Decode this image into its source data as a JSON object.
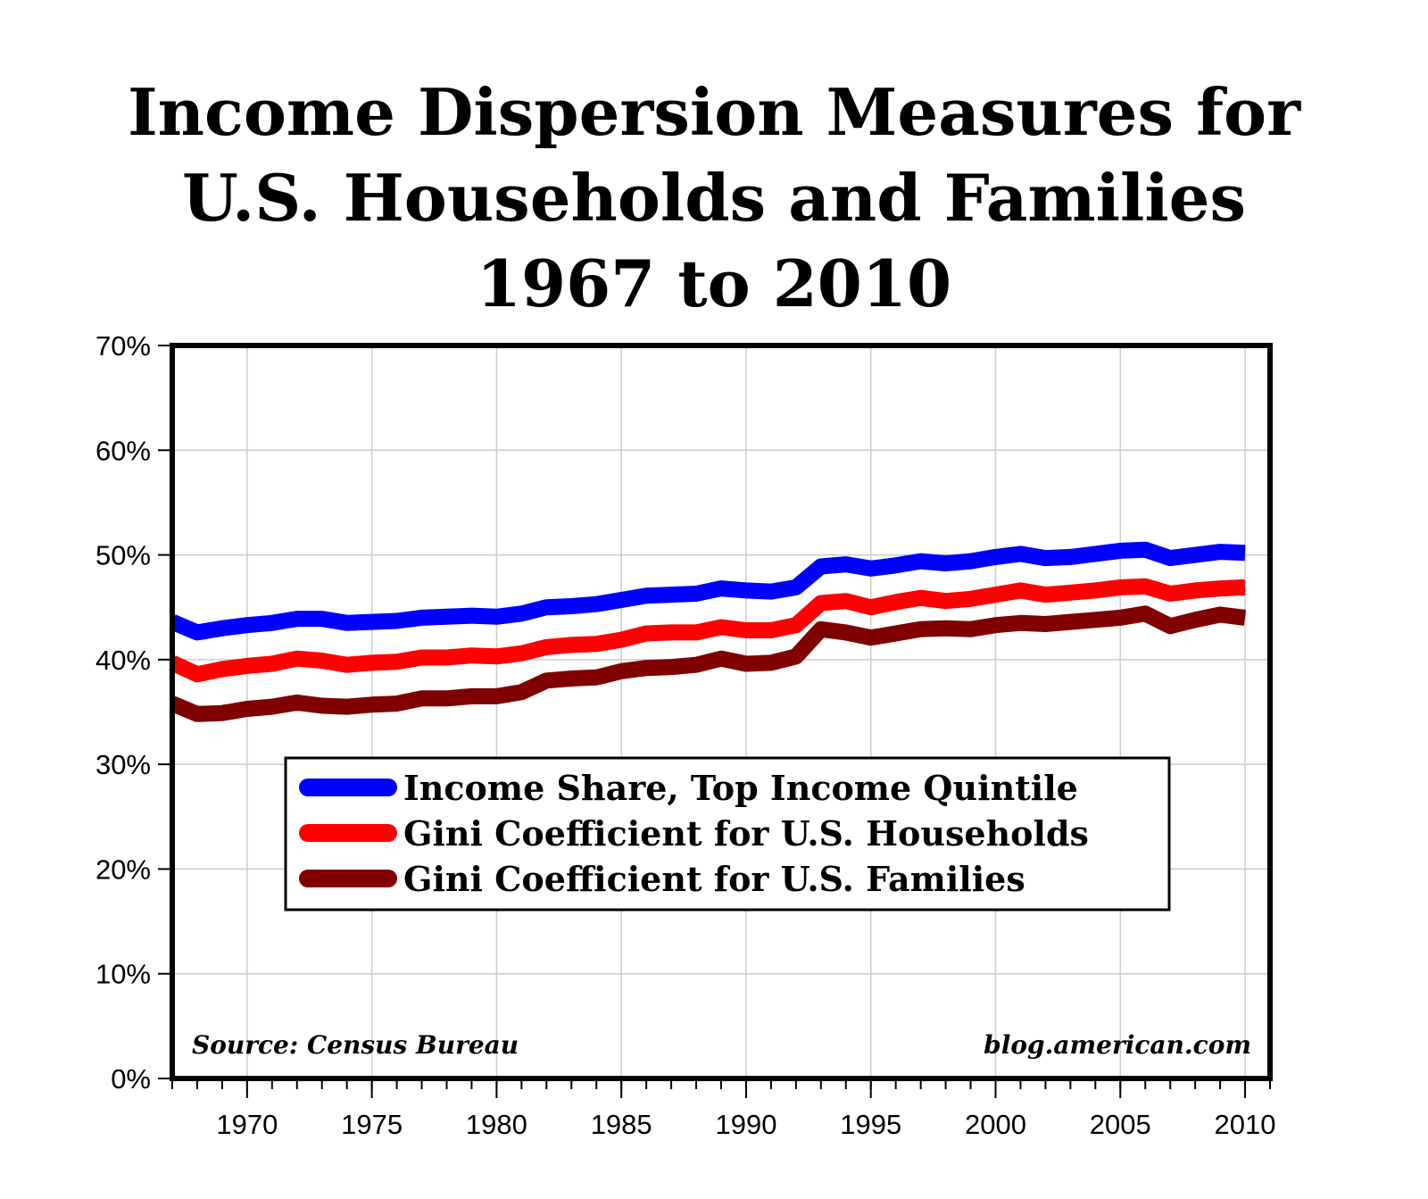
{
  "chart_data": {
    "type": "line",
    "title_lines": [
      "Income Dispersion Measures for",
      "U.S. Households and Families",
      "1967 to 2010"
    ],
    "x": [
      1967,
      1968,
      1969,
      1970,
      1971,
      1972,
      1973,
      1974,
      1975,
      1976,
      1977,
      1978,
      1979,
      1980,
      1981,
      1982,
      1983,
      1984,
      1985,
      1986,
      1987,
      1988,
      1989,
      1990,
      1991,
      1992,
      1993,
      1994,
      1995,
      1996,
      1997,
      1998,
      1999,
      2000,
      2001,
      2002,
      2003,
      2004,
      2005,
      2006,
      2007,
      2008,
      2009,
      2010
    ],
    "series": [
      {
        "name": "Income Share, Top Income Quintile",
        "color": "#0000ff",
        "values": [
          43.6,
          42.6,
          43.0,
          43.3,
          43.5,
          43.9,
          43.9,
          43.5,
          43.6,
          43.7,
          44.0,
          44.1,
          44.2,
          44.1,
          44.4,
          45.0,
          45.1,
          45.3,
          45.7,
          46.1,
          46.2,
          46.3,
          46.8,
          46.6,
          46.5,
          46.9,
          48.9,
          49.1,
          48.7,
          49.0,
          49.4,
          49.2,
          49.4,
          49.8,
          50.1,
          49.7,
          49.8,
          50.1,
          50.4,
          50.5,
          49.7,
          50.0,
          50.3,
          50.2
        ]
      },
      {
        "name": "Gini Coefficient for U.S. Households",
        "color": "#ff0000",
        "values": [
          39.7,
          38.6,
          39.1,
          39.4,
          39.6,
          40.1,
          39.9,
          39.5,
          39.7,
          39.8,
          40.2,
          40.2,
          40.4,
          40.3,
          40.6,
          41.2,
          41.4,
          41.5,
          41.9,
          42.5,
          42.6,
          42.6,
          43.1,
          42.8,
          42.8,
          43.3,
          45.4,
          45.6,
          45.0,
          45.5,
          45.9,
          45.6,
          45.8,
          46.2,
          46.6,
          46.2,
          46.4,
          46.6,
          46.9,
          47.0,
          46.3,
          46.6,
          46.8,
          46.9
        ]
      },
      {
        "name": "Gini Coefficient for U.S. Families",
        "color": "#800000",
        "values": [
          35.8,
          34.8,
          34.9,
          35.3,
          35.5,
          35.9,
          35.6,
          35.5,
          35.7,
          35.8,
          36.3,
          36.3,
          36.5,
          36.5,
          36.9,
          38.0,
          38.2,
          38.3,
          38.9,
          39.2,
          39.3,
          39.5,
          40.1,
          39.6,
          39.7,
          40.3,
          42.9,
          42.6,
          42.1,
          42.5,
          42.9,
          43.0,
          42.9,
          43.3,
          43.5,
          43.4,
          43.6,
          43.8,
          44.0,
          44.4,
          43.2,
          43.8,
          44.3,
          44.0
        ]
      }
    ],
    "y_ticks": [
      "0%",
      "10%",
      "20%",
      "30%",
      "40%",
      "50%",
      "60%",
      "70%"
    ],
    "ylim": [
      0,
      70
    ],
    "x_tick_labels": [
      "1970",
      "1975",
      "1980",
      "1985",
      "1990",
      "1995",
      "2000",
      "2005",
      "2010"
    ],
    "xlim": [
      1967,
      2011
    ],
    "grid": true,
    "legend_position": "lower-center",
    "source_note": "Source: Census Bureau",
    "credit_note": "blog.american.com"
  }
}
